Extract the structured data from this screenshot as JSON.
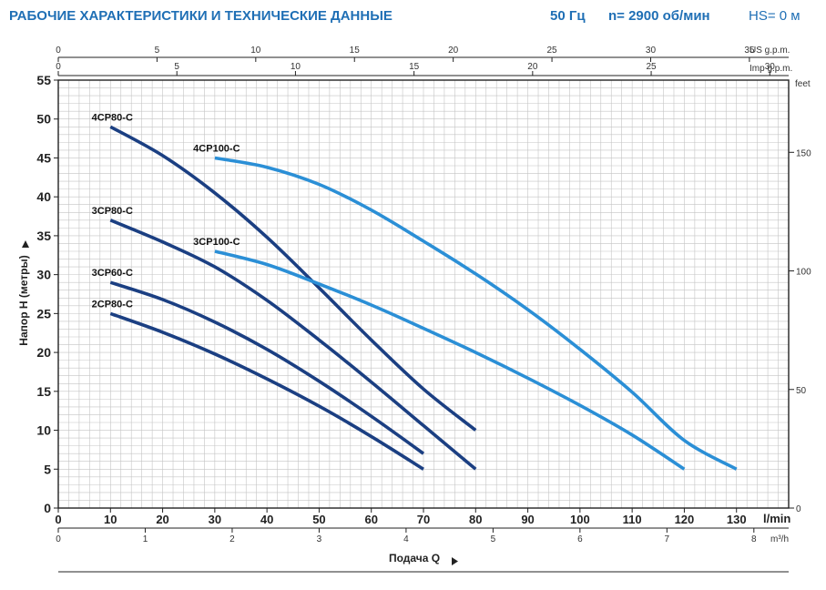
{
  "header": {
    "title": "РАБОЧИЕ ХАРАКТЕРИСТИКИ И ТЕХНИЧЕСКИЕ ДАННЫЕ",
    "frequency": "50 Гц",
    "speed": "n= 2900 об/мин",
    "hs": "HS= 0 м"
  },
  "colors": {
    "dark_blue": "#1b3f82",
    "light_blue": "#2b8fd6",
    "header_blue": "#1f6fb5",
    "grid": "#c4c4c4"
  },
  "chart_data": {
    "type": "line",
    "xlabel": "Подача Q",
    "ylabel": "Напор H (метры)",
    "x_unit": "l/min",
    "xlim": [
      0,
      140
    ],
    "ylim": [
      0,
      55
    ],
    "x_ticks": [
      0,
      10,
      20,
      30,
      40,
      50,
      60,
      70,
      80,
      90,
      100,
      110,
      120,
      130
    ],
    "y_ticks": [
      0,
      5,
      10,
      15,
      20,
      25,
      30,
      35,
      40,
      45,
      50,
      55
    ],
    "grid": true,
    "secondary_axes": {
      "top_us_label": "US g.p.m.",
      "top_us_ticks": [
        0,
        5,
        10,
        15,
        20,
        25,
        30,
        35
      ],
      "top_imp_label": "Imp g.p.m.",
      "top_imp_ticks": [
        0,
        5,
        10,
        15,
        20,
        25,
        30
      ],
      "right_label": "feet",
      "right_ticks": [
        0,
        50,
        100,
        150
      ],
      "bottom_m3h_label": "m³/h",
      "bottom_m3h_ticks": [
        0,
        1,
        2,
        3,
        4,
        5,
        6,
        7,
        8
      ]
    },
    "series": [
      {
        "name": "4CP80-C",
        "color": "dark",
        "x": [
          10,
          20,
          30,
          40,
          50,
          60,
          70,
          80
        ],
        "y": [
          49,
          45.3,
          40.5,
          34.8,
          28.3,
          21.6,
          15.3,
          10
        ]
      },
      {
        "name": "3CP80-C",
        "color": "dark",
        "x": [
          10,
          20,
          30,
          40,
          50,
          60,
          70,
          80
        ],
        "y": [
          37,
          34.2,
          31,
          26.7,
          21.6,
          16.2,
          10.6,
          5
        ]
      },
      {
        "name": "3CP60-C",
        "color": "dark",
        "x": [
          10,
          20,
          30,
          40,
          50,
          60,
          70
        ],
        "y": [
          29,
          26.8,
          23.9,
          20.4,
          16.3,
          11.8,
          7
        ]
      },
      {
        "name": "2CP80-C",
        "color": "dark",
        "x": [
          10,
          20,
          30,
          40,
          50,
          60,
          70
        ],
        "y": [
          25,
          22.6,
          19.8,
          16.6,
          13.1,
          9.2,
          5
        ]
      },
      {
        "name": "4CP100-C",
        "color": "light",
        "x": [
          30,
          40,
          50,
          60,
          70,
          80,
          90,
          100,
          110,
          120,
          130
        ],
        "y": [
          45,
          43.8,
          41.6,
          38.3,
          34.3,
          30.1,
          25.5,
          20.4,
          14.9,
          8.7,
          5
        ]
      },
      {
        "name": "3CP100-C",
        "color": "light",
        "x": [
          30,
          40,
          50,
          60,
          70,
          80,
          90,
          100,
          110,
          120
        ],
        "y": [
          33,
          31.3,
          28.8,
          26.1,
          23.1,
          20,
          16.7,
          13.2,
          9.4,
          5
        ]
      }
    ]
  }
}
